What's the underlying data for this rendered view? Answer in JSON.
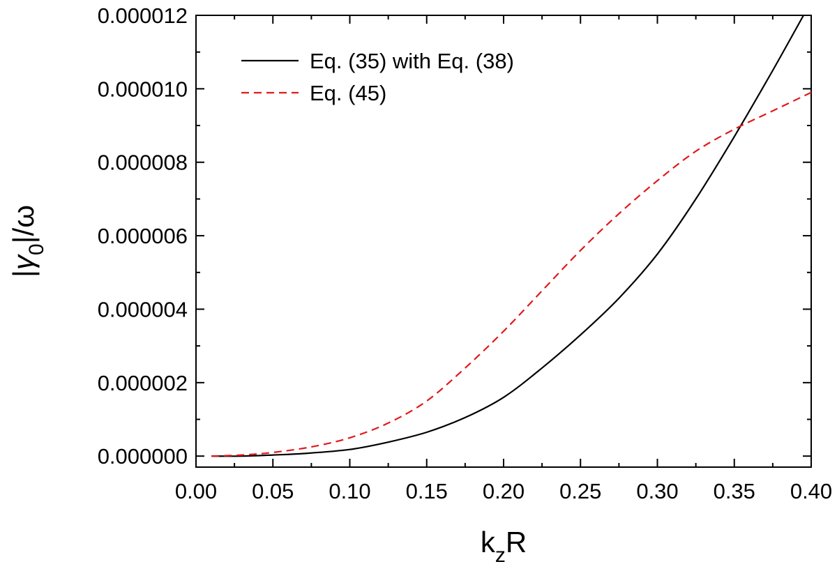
{
  "chart_data": {
    "type": "line",
    "title": "",
    "xlabel": {
      "main": "k",
      "sub": "z",
      "tail": "R"
    },
    "ylabel": {
      "bar_open": "|",
      "main": "γ",
      "sub": "0",
      "tail": "|/ω"
    },
    "xlim": [
      0.0,
      0.4
    ],
    "ylim": [
      -3e-07,
      1.2e-05
    ],
    "x_ticks": [
      0.0,
      0.05,
      0.1,
      0.15,
      0.2,
      0.25,
      0.3,
      0.35,
      0.4
    ],
    "x_tick_labels": [
      "0.00",
      "0.05",
      "0.10",
      "0.15",
      "0.20",
      "0.25",
      "0.30",
      "0.35",
      "0.40"
    ],
    "y_ticks": [
      0.0,
      2e-06,
      4e-06,
      6e-06,
      8e-06,
      1e-05,
      1.2e-05
    ],
    "y_tick_labels": [
      "0.000000",
      "0.000002",
      "0.000004",
      "0.000006",
      "0.000008",
      "0.000010",
      "0.000012"
    ],
    "grid": false,
    "legend_position": "top-left",
    "series": [
      {
        "name": "Eq. (35) with Eq. (38)",
        "color": "#000000",
        "style": "solid",
        "x": [
          0.01,
          0.03,
          0.05,
          0.07,
          0.1,
          0.125,
          0.15,
          0.175,
          0.2,
          0.225,
          0.25,
          0.275,
          0.3,
          0.325,
          0.35,
          0.375,
          0.395
        ],
        "y": [
          0.0,
          0.0,
          3e-08,
          7e-08,
          1.8e-07,
          3.8e-07,
          6.5e-07,
          1.05e-06,
          1.6e-06,
          2.4e-06,
          3.3e-06,
          4.3e-06,
          5.5e-06,
          7e-06,
          8.7e-06,
          1.05e-05,
          1.2e-05
        ]
      },
      {
        "name": "Eq. (45)",
        "color": "#e0191b",
        "style": "dashed",
        "x": [
          0.01,
          0.03,
          0.05,
          0.075,
          0.1,
          0.125,
          0.15,
          0.175,
          0.2,
          0.225,
          0.25,
          0.275,
          0.3,
          0.325,
          0.35,
          0.375,
          0.4
        ],
        "y": [
          0.0,
          3e-08,
          1e-07,
          2.5e-07,
          5e-07,
          9e-07,
          1.5e-06,
          2.4e-06,
          3.4e-06,
          4.5e-06,
          5.6e-06,
          6.6e-06,
          7.5e-06,
          8.3e-06,
          8.9e-06,
          9.4e-06,
          9.9e-06
        ]
      }
    ]
  }
}
